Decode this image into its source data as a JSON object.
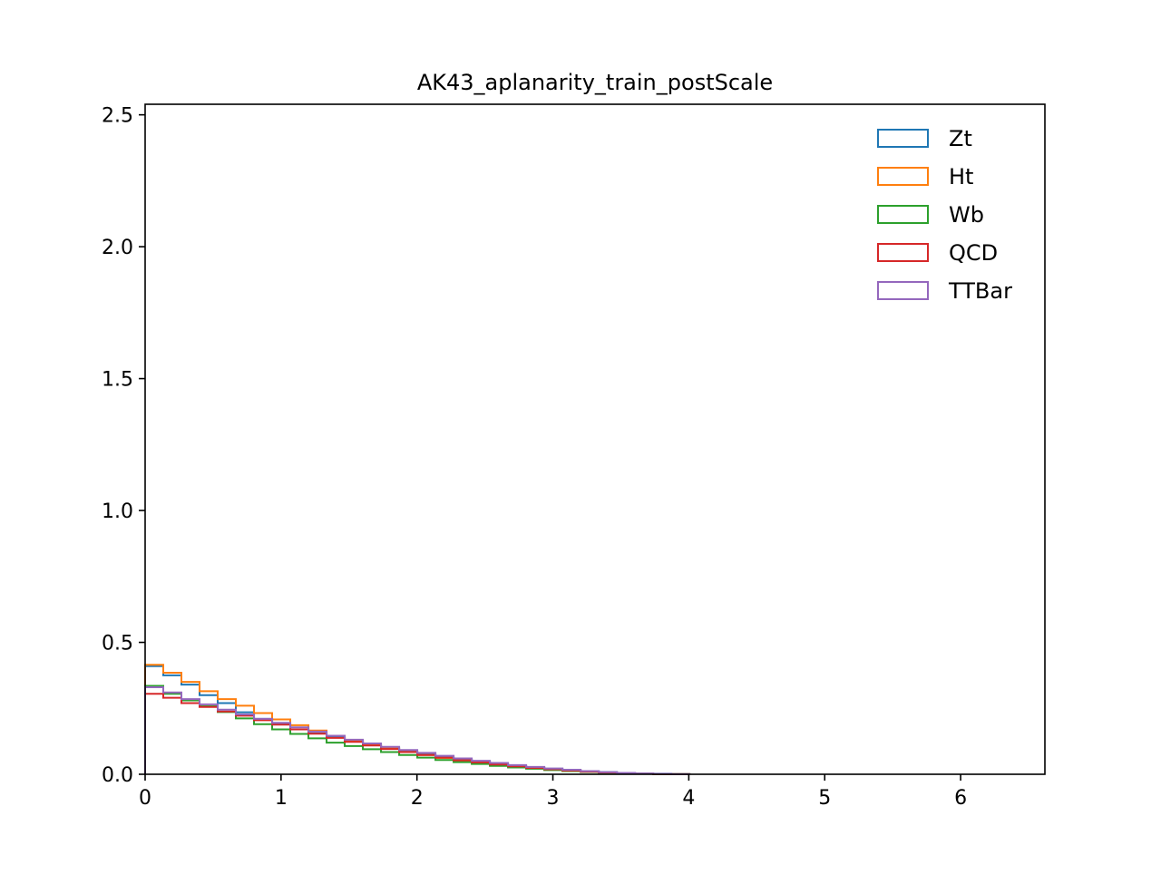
{
  "chart_data": {
    "type": "line",
    "style": "step-histogram",
    "title": "AK43_aplanarity_train_postScale",
    "xlabel": "",
    "ylabel": "",
    "xlim": [
      0,
      6.62
    ],
    "ylim": [
      0,
      2.54
    ],
    "x_ticks": [
      "0",
      "1",
      "2",
      "3",
      "4",
      "5",
      "6"
    ],
    "y_ticks": [
      "0.0",
      "0.5",
      "1.0",
      "1.5",
      "2.0",
      "2.5"
    ],
    "grid": false,
    "legend_position": "top-right",
    "bins": {
      "start": 0.0,
      "width": 0.1335,
      "count": 30
    },
    "series": [
      {
        "name": "Zt",
        "color": "#1f77b4",
        "values": [
          0.41,
          0.375,
          0.34,
          0.3,
          0.27,
          0.235,
          0.21,
          0.19,
          0.17,
          0.155,
          0.14,
          0.125,
          0.11,
          0.1,
          0.088,
          0.077,
          0.066,
          0.056,
          0.047,
          0.039,
          0.032,
          0.026,
          0.021,
          0.016,
          0.012,
          0.008,
          0.005,
          0.003,
          0.002,
          0.001
        ]
      },
      {
        "name": "Ht",
        "color": "#ff7f0e",
        "values": [
          0.415,
          0.385,
          0.35,
          0.315,
          0.285,
          0.26,
          0.232,
          0.208,
          0.186,
          0.166,
          0.146,
          0.128,
          0.112,
          0.098,
          0.085,
          0.073,
          0.062,
          0.052,
          0.043,
          0.035,
          0.028,
          0.022,
          0.017,
          0.013,
          0.009,
          0.006,
          0.004,
          0.002,
          0.001,
          0.0005
        ]
      },
      {
        "name": "Wb",
        "color": "#2ca02c",
        "values": [
          0.335,
          0.305,
          0.28,
          0.258,
          0.236,
          0.212,
          0.19,
          0.17,
          0.153,
          0.136,
          0.12,
          0.107,
          0.095,
          0.084,
          0.073,
          0.063,
          0.054,
          0.046,
          0.039,
          0.032,
          0.026,
          0.021,
          0.016,
          0.012,
          0.009,
          0.006,
          0.004,
          0.002,
          0.001,
          0.0005
        ]
      },
      {
        "name": "QCD",
        "color": "#d62728",
        "values": [
          0.305,
          0.29,
          0.27,
          0.255,
          0.238,
          0.222,
          0.205,
          0.188,
          0.17,
          0.154,
          0.138,
          0.123,
          0.109,
          0.096,
          0.084,
          0.073,
          0.063,
          0.053,
          0.045,
          0.037,
          0.03,
          0.024,
          0.019,
          0.014,
          0.01,
          0.007,
          0.004,
          0.002,
          0.001,
          0.0005
        ]
      },
      {
        "name": "TTBar",
        "color": "#9467bd",
        "values": [
          0.33,
          0.31,
          0.285,
          0.265,
          0.245,
          0.227,
          0.21,
          0.195,
          0.178,
          0.162,
          0.146,
          0.131,
          0.117,
          0.104,
          0.092,
          0.081,
          0.07,
          0.06,
          0.051,
          0.043,
          0.035,
          0.028,
          0.022,
          0.017,
          0.012,
          0.008,
          0.005,
          0.003,
          0.0015,
          0.0005
        ]
      }
    ]
  }
}
